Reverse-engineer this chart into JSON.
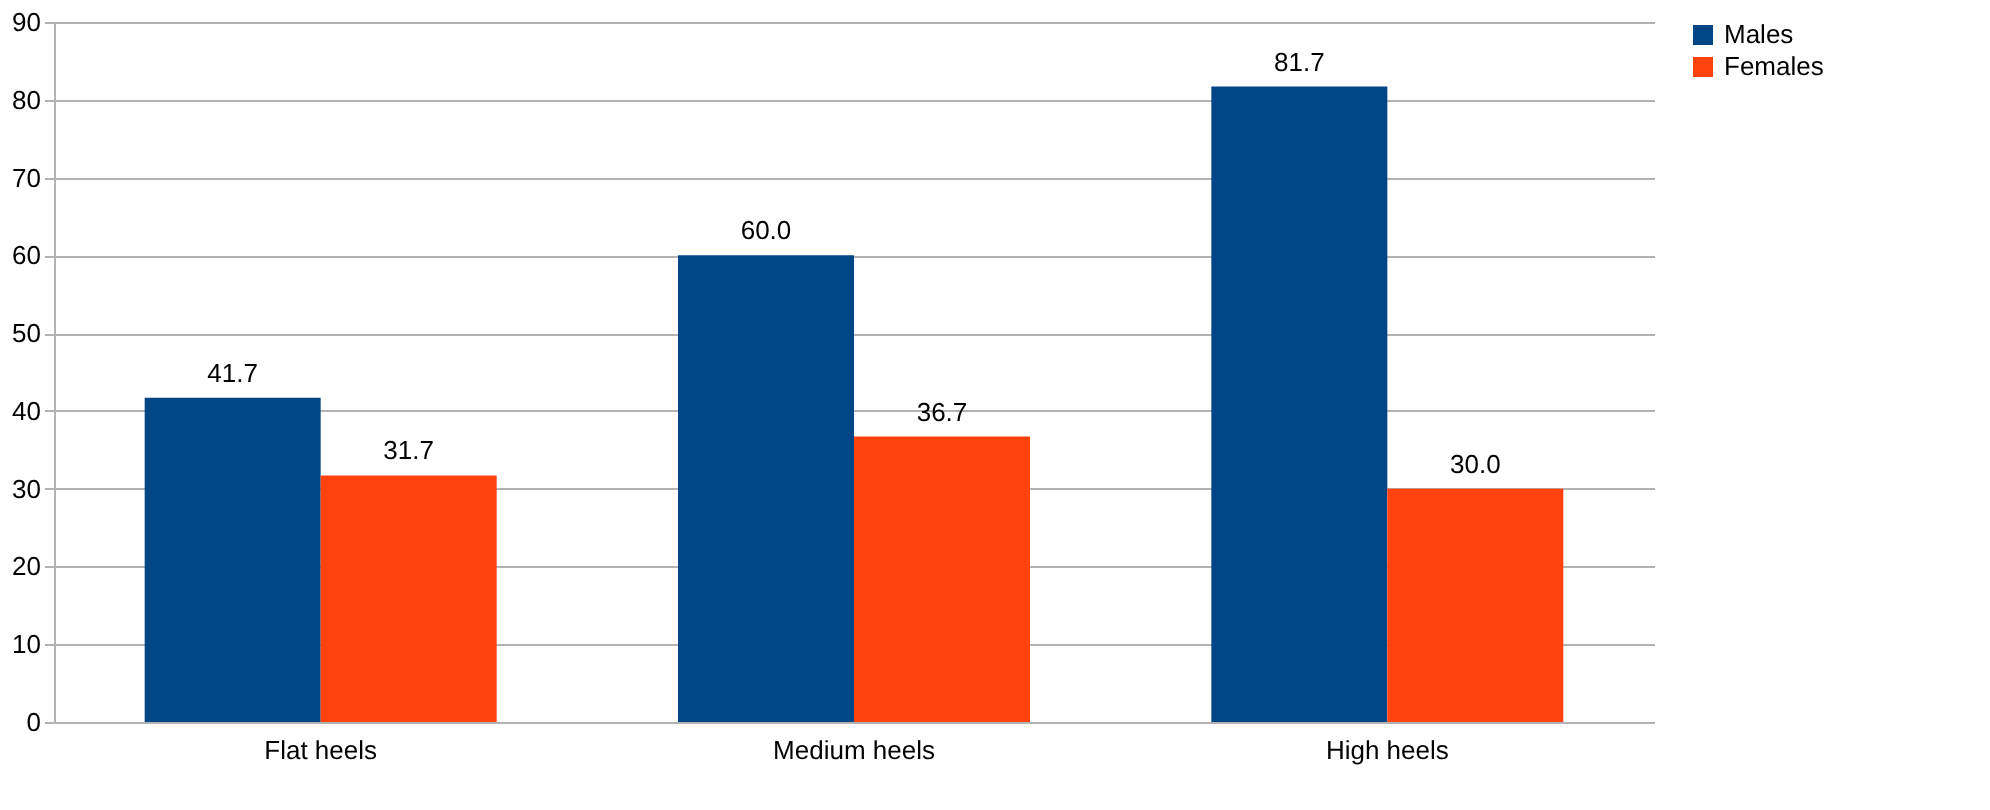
{
  "chart_data": {
    "type": "bar",
    "categories": [
      "Flat heels",
      "Medium heels",
      "High heels"
    ],
    "series": [
      {
        "name": "Males",
        "color": "#004586",
        "values": [
          41.7,
          60.0,
          81.7
        ],
        "value_labels": [
          "41.7",
          "60.0",
          "81.7"
        ]
      },
      {
        "name": "Females",
        "color": "#ff420e",
        "values": [
          31.7,
          36.7,
          30.0
        ],
        "value_labels": [
          "31.7",
          "36.7",
          "30.0"
        ]
      }
    ],
    "ylim": [
      0,
      90
    ],
    "yticks": [
      0,
      10,
      20,
      30,
      40,
      50,
      60,
      70,
      80,
      90
    ],
    "grid": "y",
    "legend": "right"
  }
}
